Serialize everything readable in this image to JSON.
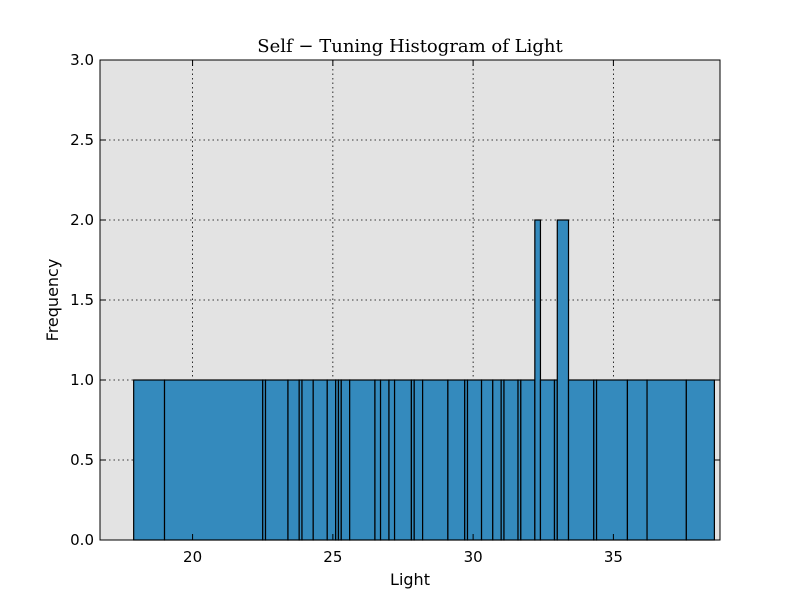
{
  "chart_data": {
    "type": "bar",
    "title": "Self − Tuning Histogram of Light",
    "xlabel": "Light",
    "ylabel": "Frequency",
    "xlim": [
      16.7,
      38.8
    ],
    "ylim": [
      0,
      3.0
    ],
    "xticks": [
      20,
      25,
      30,
      35
    ],
    "yticks": [
      0.0,
      0.5,
      1.0,
      1.5,
      2.0,
      2.5,
      3.0
    ],
    "ytick_labels": [
      "0.0",
      "0.5",
      "1.0",
      "1.5",
      "2.0",
      "2.5",
      "3.0"
    ],
    "grid": true,
    "background": "#e3e3e3",
    "bar_color": "#348abd",
    "bins": [
      {
        "x0": 17.9,
        "x1": 19.0,
        "value": 1
      },
      {
        "x0": 19.0,
        "x1": 22.5,
        "value": 1
      },
      {
        "x0": 22.5,
        "x1": 22.6,
        "value": 1
      },
      {
        "x0": 22.6,
        "x1": 23.4,
        "value": 1
      },
      {
        "x0": 23.4,
        "x1": 23.8,
        "value": 1
      },
      {
        "x0": 23.8,
        "x1": 23.9,
        "value": 1
      },
      {
        "x0": 23.9,
        "x1": 24.3,
        "value": 1
      },
      {
        "x0": 24.3,
        "x1": 24.8,
        "value": 1
      },
      {
        "x0": 24.8,
        "x1": 25.1,
        "value": 1
      },
      {
        "x0": 25.1,
        "x1": 25.2,
        "value": 1
      },
      {
        "x0": 25.2,
        "x1": 25.3,
        "value": 1
      },
      {
        "x0": 25.3,
        "x1": 25.6,
        "value": 1
      },
      {
        "x0": 25.6,
        "x1": 26.5,
        "value": 1
      },
      {
        "x0": 26.5,
        "x1": 26.7,
        "value": 1
      },
      {
        "x0": 26.7,
        "x1": 27.0,
        "value": 1
      },
      {
        "x0": 27.0,
        "x1": 27.2,
        "value": 1
      },
      {
        "x0": 27.2,
        "x1": 27.8,
        "value": 1
      },
      {
        "x0": 27.8,
        "x1": 27.9,
        "value": 1
      },
      {
        "x0": 27.9,
        "x1": 28.2,
        "value": 1
      },
      {
        "x0": 28.2,
        "x1": 29.1,
        "value": 1
      },
      {
        "x0": 29.1,
        "x1": 29.7,
        "value": 1
      },
      {
        "x0": 29.7,
        "x1": 29.8,
        "value": 1
      },
      {
        "x0": 29.8,
        "x1": 30.3,
        "value": 1
      },
      {
        "x0": 30.3,
        "x1": 30.7,
        "value": 1
      },
      {
        "x0": 30.7,
        "x1": 31.0,
        "value": 1
      },
      {
        "x0": 31.0,
        "x1": 31.1,
        "value": 1
      },
      {
        "x0": 31.1,
        "x1": 31.6,
        "value": 1
      },
      {
        "x0": 31.6,
        "x1": 31.7,
        "value": 1
      },
      {
        "x0": 31.7,
        "x1": 32.2,
        "value": 1
      },
      {
        "x0": 32.2,
        "x1": 32.4,
        "value": 2
      },
      {
        "x0": 32.4,
        "x1": 32.9,
        "value": 1
      },
      {
        "x0": 32.9,
        "x1": 33.0,
        "value": 1
      },
      {
        "x0": 33.0,
        "x1": 33.4,
        "value": 2
      },
      {
        "x0": 33.4,
        "x1": 34.3,
        "value": 1
      },
      {
        "x0": 34.3,
        "x1": 34.4,
        "value": 1
      },
      {
        "x0": 34.4,
        "x1": 35.5,
        "value": 1
      },
      {
        "x0": 35.5,
        "x1": 36.2,
        "value": 1
      },
      {
        "x0": 36.2,
        "x1": 37.6,
        "value": 1
      },
      {
        "x0": 37.6,
        "x1": 38.6,
        "value": 1
      }
    ]
  }
}
